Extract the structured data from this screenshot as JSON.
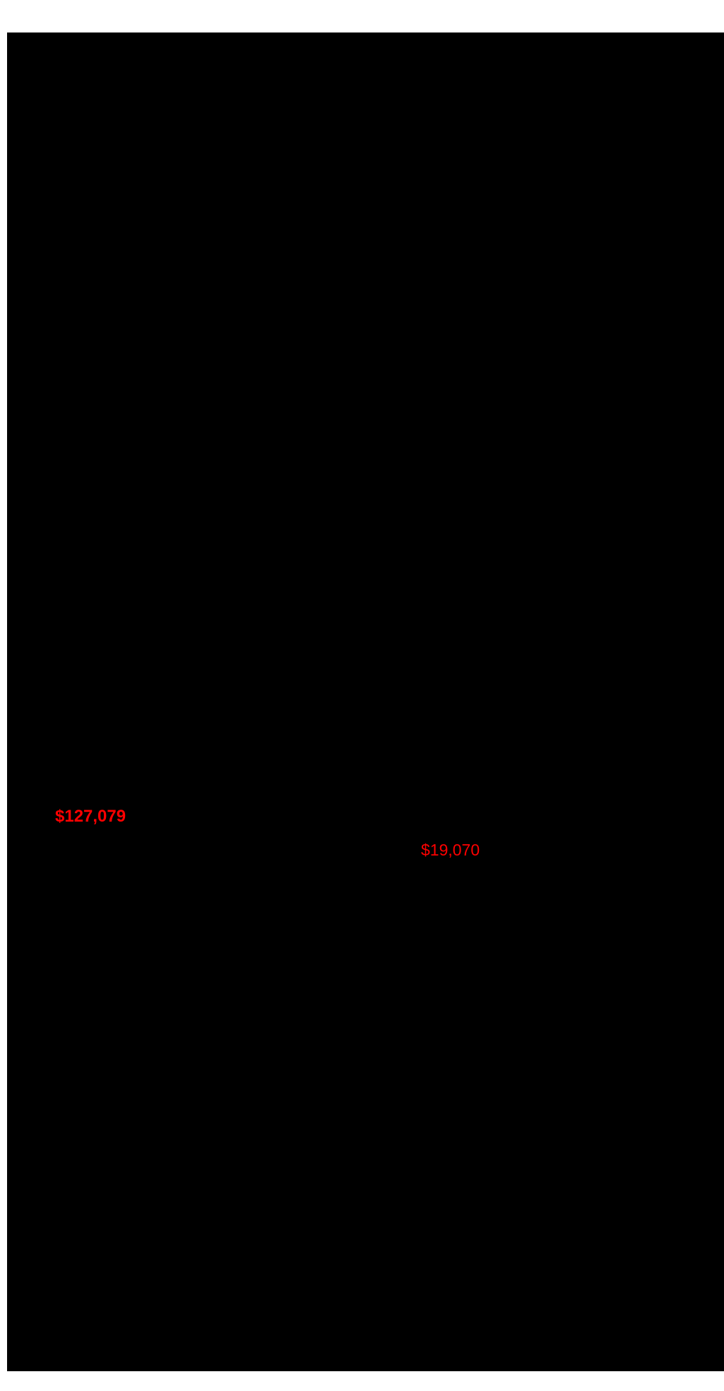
{
  "window": {
    "background_color": "#ffffff",
    "overlay_color": "#000000",
    "accent_red": "#ff0000"
  },
  "price_markers": [
    {
      "value": "$127,079",
      "color": "#ff0000",
      "weight": "bold"
    },
    {
      "value": "$19,070",
      "color": "#ff0000",
      "weight": "normal"
    }
  ]
}
